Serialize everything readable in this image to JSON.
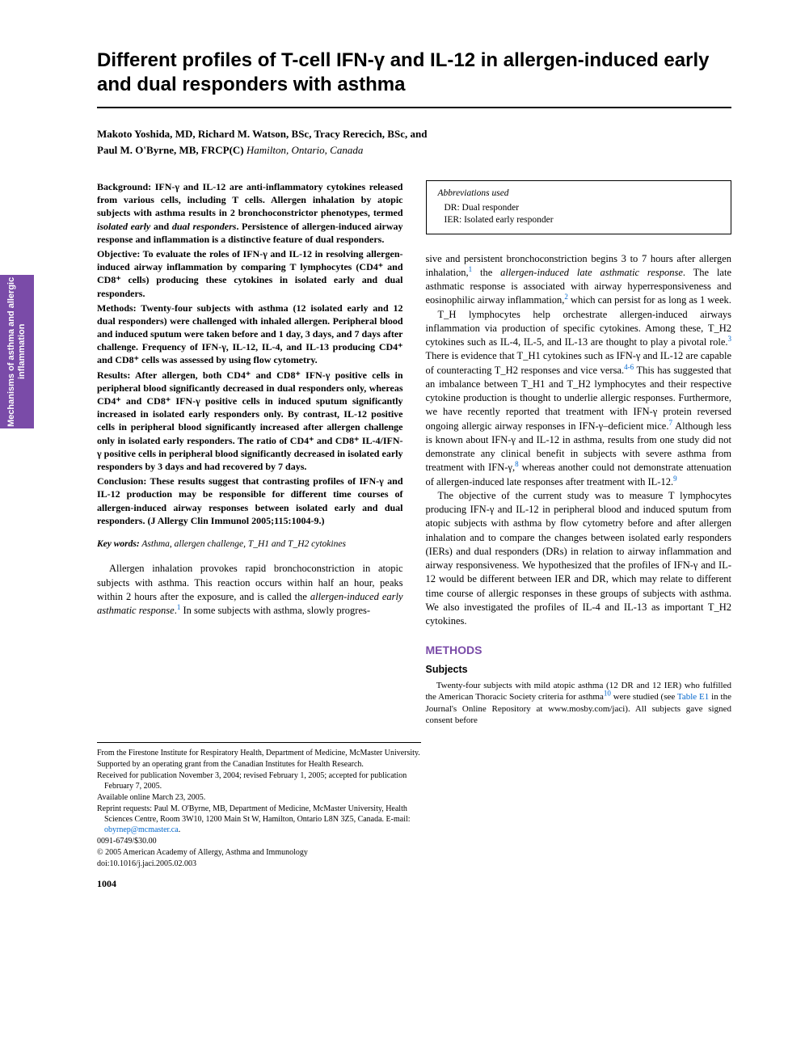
{
  "side_tab": "Mechanisms of asthma and allergic inflammation",
  "title": "Different profiles of T-cell IFN-γ and IL-12 in allergen-induced early and dual responders with asthma",
  "authors_line1": "Makoto Yoshida, MD, Richard M. Watson, BSc, Tracy Rerecich, BSc, and",
  "authors_line2_name": "Paul M. O'Byrne, MB, FRCP(C)",
  "authors_affil": " Hamilton, Ontario, Canada",
  "abstract": {
    "background": "IFN-γ and IL-12 are anti-inflammatory cytokines released from various cells, including T cells. Allergen inhalation by atopic subjects with asthma results in 2 bronchoconstrictor phenotypes, termed ",
    "background_ital1": "isolated early",
    "background_mid": " and ",
    "background_ital2": "dual responders",
    "background_end": ". Persistence of allergen-induced airway response and inflammation is a distinctive feature of dual responders.",
    "objective": "To evaluate the roles of IFN-γ and IL-12 in resolving allergen-induced airway inflammation by comparing T lymphocytes (CD4⁺ and CD8⁺ cells) producing these cytokines in isolated early and dual responders.",
    "methods": "Twenty-four subjects with asthma (12 isolated early and 12 dual responders) were challenged with inhaled allergen. Peripheral blood and induced sputum were taken before and 1 day, 3 days, and 7 days after challenge. Frequency of IFN-γ, IL-12, IL-4, and IL-13 producing CD4⁺ and CD8⁺ cells was assessed by using flow cytometry.",
    "results": "After allergen, both CD4⁺ and CD8⁺ IFN-γ positive cells in peripheral blood significantly decreased in dual responders only, whereas CD4⁺ and CD8⁺ IFN-γ positive cells in induced sputum significantly increased in isolated early responders only. By contrast, IL-12 positive cells in peripheral blood significantly increased after allergen challenge only in isolated early responders. The ratio of CD4⁺ and CD8⁺ IL-4/IFN-γ positive cells in peripheral blood significantly decreased in isolated early responders by 3 days and had recovered by 7 days.",
    "conclusion": "These results suggest that contrasting profiles of IFN-γ and IL-12 production may be responsible for different time courses of allergen-induced airway responses between isolated early and dual responders. (J Allergy Clin Immunol 2005;115:1004-9.)"
  },
  "keywords_label": "Key words:",
  "keywords_text": " Asthma, allergen challenge, T_H1 and T_H2 cytokines",
  "intro_p1a": "Allergen inhalation provokes rapid bronchoconstriction in atopic subjects with asthma. This reaction occurs within half an hour, peaks within 2 hours after the exposure, and is called the ",
  "intro_p1_ital": "allergen-induced early asthmatic response",
  "intro_p1b": ".",
  "intro_p1_ref": "1",
  "intro_p1c": " In some subjects with asthma, slowly progres-",
  "footnotes": {
    "f1": "From the Firestone Institute for Respiratory Health, Department of Medicine, McMaster University.",
    "f2": "Supported by an operating grant from the Canadian Institutes for Health Research.",
    "f3": "Received for publication November 3, 2004; revised February 1, 2005; accepted for publication February 7, 2005.",
    "f4": "Available online March 23, 2005.",
    "f5a": "Reprint requests: Paul M. O'Byrne, MB, Department of Medicine, McMaster University, Health Sciences Centre, Room 3W10, 1200 Main St W, Hamilton, Ontario L8N 3Z5, Canada. E-mail: ",
    "f5_email": "obyrnep@mcmaster.ca",
    "f5b": ".",
    "f6": "0091-6749/$30.00",
    "f7": "© 2005 American Academy of Allergy, Asthma and Immunology",
    "f8": "doi:10.1016/j.jaci.2005.02.003"
  },
  "page_number": "1004",
  "abbrev": {
    "header": "Abbreviations used",
    "r1": "DR: Dual responder",
    "r2": "IER: Isolated early responder"
  },
  "col2_p1a": "sive and persistent bronchoconstriction begins 3 to 7 hours after allergen inhalation,",
  "col2_p1_ref1": "1",
  "col2_p1b": " the ",
  "col2_p1_ital": "allergen-induced late asthmatic response",
  "col2_p1c": ". The late asthmatic response is associated with airway hyperresponsiveness and eosinophilic airway inflammation,",
  "col2_p1_ref2": "2",
  "col2_p1d": " which can persist for as long as 1 week.",
  "col2_p2a": "T_H lymphocytes help orchestrate allergen-induced airways inflammation via production of specific cytokines. Among these, T_H2 cytokines such as IL-4, IL-5, and IL-13 are thought to play a pivotal role.",
  "col2_p2_ref3": "3",
  "col2_p2b": " There is evidence that T_H1 cytokines such as IFN-γ and IL-12 are capable of counteracting T_H2 responses and vice versa.",
  "col2_p2_ref46": "4-6",
  "col2_p2c": " This has suggested that an imbalance between T_H1 and T_H2 lymphocytes and their respective cytokine production is thought to underlie allergic responses. Furthermore, we have recently reported that treatment with IFN-γ protein reversed ongoing allergic airway responses in IFN-γ–deficient mice.",
  "col2_p2_ref7": "7",
  "col2_p2d": " Although less is known about IFN-γ and IL-12 in asthma, results from one study did not demonstrate any clinical benefit in subjects with severe asthma from treatment with IFN-γ,",
  "col2_p2_ref8": "8",
  "col2_p2e": " whereas another could not demonstrate attenuation of allergen-induced late responses after treatment with IL-12.",
  "col2_p2_ref9": "9",
  "col2_p3": "The objective of the current study was to measure T lymphocytes producing IFN-γ and IL-12 in peripheral blood and induced sputum from atopic subjects with asthma by flow cytometry before and after allergen inhalation and to compare the changes between isolated early responders (IERs) and dual responders (DRs) in relation to airway inflammation and airway responsiveness. We hypothesized that the profiles of IFN-γ and IL-12 would be different between IER and DR, which may relate to different time course of allergic responses in these groups of subjects with asthma. We also investigated the profiles of IL-4 and IL-13 as important T_H2 cytokines.",
  "methods_header": "METHODS",
  "subjects_header": "Subjects",
  "subjects_body_a": "Twenty-four subjects with mild atopic asthma (12 DR and 12 IER) who fulfilled the American Thoracic Society criteria for asthma",
  "subjects_ref10": "10",
  "subjects_body_b": " were studied (see ",
  "subjects_table_ref": "Table E1",
  "subjects_body_c": " in the Journal's Online Repository at www.mosby.com/jaci). All subjects gave signed consent before"
}
